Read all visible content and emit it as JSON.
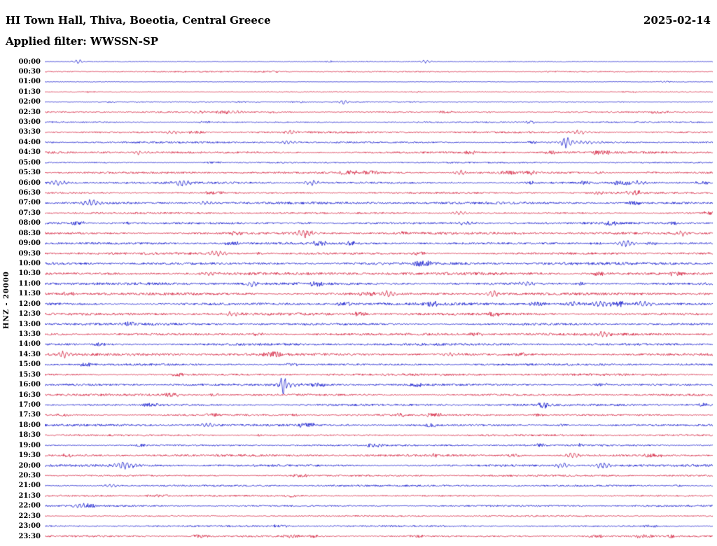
{
  "header": {
    "title": "HI Town Hall, Thiva, Boeotia, Central Greece",
    "date": "2025-02-14",
    "filter_label": "Applied filter: WWSSN-SP"
  },
  "axis": {
    "ylabel": "HNZ - 20000"
  },
  "chart_data": {
    "type": "line",
    "subtype": "helicorder-seismogram",
    "title": "HI Town Hall, Thiva, Boeotia, Central Greece",
    "date": "2025-02-14",
    "filter": "WWSSN-SP",
    "ylabel": "HNZ - 20000",
    "row_duration_minutes": 30,
    "x_axis": {
      "start": "00:00",
      "end": "24:00"
    },
    "legend": "none",
    "grid": false,
    "colors": {
      "even_half_hour": "#0008c8",
      "odd_half_hour": "#d01030"
    },
    "rows": [
      {
        "time": "00:00",
        "color": "#0008c8",
        "noise": 0.5,
        "events": [
          {
            "x": 0.05,
            "amp": 2.2,
            "w": 3
          },
          {
            "x": 0.57,
            "amp": 1.8,
            "w": 3
          }
        ]
      },
      {
        "time": "00:30",
        "color": "#d01030",
        "noise": 0.7,
        "events": []
      },
      {
        "time": "01:00",
        "color": "#0008c8",
        "noise": 0.35,
        "events": []
      },
      {
        "time": "01:30",
        "color": "#d01030",
        "noise": 0.5,
        "events": []
      },
      {
        "time": "02:00",
        "color": "#0008c8",
        "noise": 0.5,
        "events": [
          {
            "x": 0.447,
            "amp": 3,
            "w": 2
          }
        ]
      },
      {
        "time": "02:30",
        "color": "#d01030",
        "noise": 0.8,
        "events": [
          {
            "x": 0.23,
            "amp": 1.8,
            "w": 4
          },
          {
            "x": 0.285,
            "amp": 1.8,
            "w": 4
          }
        ]
      },
      {
        "time": "03:00",
        "color": "#0008c8",
        "noise": 0.8,
        "events": []
      },
      {
        "time": "03:30",
        "color": "#d01030",
        "noise": 1.0,
        "events": [
          {
            "x": 0.19,
            "amp": 1.8,
            "w": 4
          },
          {
            "x": 0.37,
            "amp": 1.8,
            "w": 4
          },
          {
            "x": 0.8,
            "amp": 2.2,
            "w": 5
          }
        ]
      },
      {
        "time": "04:00",
        "color": "#0008c8",
        "noise": 1.0,
        "events": [
          {
            "x": 0.365,
            "amp": 2.4,
            "w": 4
          },
          {
            "x": 0.78,
            "amp": 7,
            "w": 2.5
          },
          {
            "x": 0.8,
            "amp": 2,
            "w": 10
          }
        ]
      },
      {
        "time": "04:30",
        "color": "#d01030",
        "noise": 1.2,
        "events": [
          {
            "x": 0.14,
            "amp": 2,
            "w": 4
          }
        ]
      },
      {
        "time": "05:00",
        "color": "#0008c8",
        "noise": 0.8,
        "events": []
      },
      {
        "time": "05:30",
        "color": "#d01030",
        "noise": 1.1,
        "events": [
          {
            "x": 0.62,
            "amp": 2.8,
            "w": 3.5
          },
          {
            "x": 0.735,
            "amp": 2,
            "w": 3.5
          }
        ]
      },
      {
        "time": "06:00",
        "color": "#0008c8",
        "noise": 1.2,
        "events": [
          {
            "x": 0.02,
            "amp": 3,
            "w": 4
          },
          {
            "x": 0.205,
            "amp": 4,
            "w": 4.5
          },
          {
            "x": 0.4,
            "amp": 3,
            "w": 4
          },
          {
            "x": 0.89,
            "amp": 2,
            "w": 4
          }
        ]
      },
      {
        "time": "06:30",
        "color": "#d01030",
        "noise": 1.0,
        "events": [
          {
            "x": 0.88,
            "amp": 2.2,
            "w": 4
          }
        ]
      },
      {
        "time": "07:00",
        "color": "#0008c8",
        "noise": 1.3,
        "events": [
          {
            "x": 0.07,
            "amp": 4,
            "w": 5
          },
          {
            "x": 0.24,
            "amp": 2,
            "w": 4
          }
        ]
      },
      {
        "time": "07:30",
        "color": "#d01030",
        "noise": 1.0,
        "events": [
          {
            "x": 0.62,
            "amp": 2,
            "w": 4
          }
        ]
      },
      {
        "time": "08:00",
        "color": "#0008c8",
        "noise": 1.2,
        "events": [
          {
            "x": 0.63,
            "amp": 2,
            "w": 4
          }
        ]
      },
      {
        "time": "08:30",
        "color": "#d01030",
        "noise": 1.3,
        "events": [
          {
            "x": 0.39,
            "amp": 4,
            "w": 4.5
          },
          {
            "x": 0.955,
            "amp": 2.4,
            "w": 4
          }
        ]
      },
      {
        "time": "09:00",
        "color": "#0008c8",
        "noise": 1.2,
        "events": [
          {
            "x": 0.87,
            "amp": 3.6,
            "w": 5
          }
        ]
      },
      {
        "time": "09:30",
        "color": "#d01030",
        "noise": 1.3,
        "events": [
          {
            "x": 0.26,
            "amp": 3.4,
            "w": 4
          }
        ]
      },
      {
        "time": "10:00",
        "color": "#0008c8",
        "noise": 1.5,
        "events": []
      },
      {
        "time": "10:30",
        "color": "#d01030",
        "noise": 1.5,
        "events": [
          {
            "x": 0.245,
            "amp": 2.4,
            "w": 4
          }
        ]
      },
      {
        "time": "11:00",
        "color": "#0008c8",
        "noise": 1.4,
        "events": [
          {
            "x": 0.31,
            "amp": 3.4,
            "w": 2.5
          },
          {
            "x": 0.72,
            "amp": 2,
            "w": 4
          }
        ]
      },
      {
        "time": "11:30",
        "color": "#d01030",
        "noise": 1.5,
        "events": [
          {
            "x": 0.515,
            "amp": 3.2,
            "w": 4.5
          },
          {
            "x": 0.67,
            "amp": 3.2,
            "w": 4.5
          }
        ]
      },
      {
        "time": "12:00",
        "color": "#0008c8",
        "noise": 1.5,
        "events": [
          {
            "x": 0.79,
            "amp": 2.8,
            "w": 4
          },
          {
            "x": 0.835,
            "amp": 3.6,
            "w": 4.5
          },
          {
            "x": 0.895,
            "amp": 3.2,
            "w": 4
          }
        ]
      },
      {
        "time": "12:30",
        "color": "#d01030",
        "noise": 1.4,
        "events": [
          {
            "x": 0.28,
            "amp": 2.4,
            "w": 4
          }
        ]
      },
      {
        "time": "13:00",
        "color": "#0008c8",
        "noise": 1.3,
        "events": []
      },
      {
        "time": "13:30",
        "color": "#d01030",
        "noise": 1.4,
        "events": [
          {
            "x": 0.835,
            "amp": 3,
            "w": 4
          }
        ]
      },
      {
        "time": "14:00",
        "color": "#0008c8",
        "noise": 1.3,
        "events": []
      },
      {
        "time": "14:30",
        "color": "#d01030",
        "noise": 1.4,
        "events": [
          {
            "x": 0.03,
            "amp": 3.6,
            "w": 4
          },
          {
            "x": 0.61,
            "amp": 2.4,
            "w": 4
          }
        ]
      },
      {
        "time": "15:00",
        "color": "#0008c8",
        "noise": 1.2,
        "events": []
      },
      {
        "time": "15:30",
        "color": "#d01030",
        "noise": 1.2,
        "events": []
      },
      {
        "time": "16:00",
        "color": "#0008c8",
        "noise": 1.2,
        "events": [
          {
            "x": 0.357,
            "amp": 14,
            "w": 1.2
          },
          {
            "x": 0.362,
            "amp": 3,
            "w": 6
          }
        ]
      },
      {
        "time": "16:30",
        "color": "#d01030",
        "noise": 1.2,
        "events": []
      },
      {
        "time": "17:00",
        "color": "#0008c8",
        "noise": 1.2,
        "events": [
          {
            "x": 0.75,
            "amp": 2,
            "w": 4
          }
        ]
      },
      {
        "time": "17:30",
        "color": "#d01030",
        "noise": 1.0,
        "events": []
      },
      {
        "time": "18:00",
        "color": "#0008c8",
        "noise": 1.2,
        "events": [
          {
            "x": 0.245,
            "amp": 2.4,
            "w": 4
          }
        ]
      },
      {
        "time": "18:30",
        "color": "#d01030",
        "noise": 1.0,
        "events": []
      },
      {
        "time": "19:00",
        "color": "#0008c8",
        "noise": 1.0,
        "events": []
      },
      {
        "time": "19:30",
        "color": "#d01030",
        "noise": 1.2,
        "events": [
          {
            "x": 0.79,
            "amp": 3.4,
            "w": 3.5
          }
        ]
      },
      {
        "time": "20:00",
        "color": "#0008c8",
        "noise": 1.3,
        "events": [
          {
            "x": 0.12,
            "amp": 4.5,
            "w": 6
          },
          {
            "x": 0.775,
            "amp": 3,
            "w": 4
          },
          {
            "x": 0.835,
            "amp": 3.4,
            "w": 4.5
          }
        ]
      },
      {
        "time": "20:30",
        "color": "#d01030",
        "noise": 1.0,
        "events": []
      },
      {
        "time": "21:00",
        "color": "#0008c8",
        "noise": 1.0,
        "events": [
          {
            "x": 0.1,
            "amp": 2,
            "w": 4
          }
        ]
      },
      {
        "time": "21:30",
        "color": "#d01030",
        "noise": 0.9,
        "events": []
      },
      {
        "time": "22:00",
        "color": "#0008c8",
        "noise": 1.0,
        "events": [
          {
            "x": 0.055,
            "amp": 2.4,
            "w": 4
          }
        ]
      },
      {
        "time": "22:30",
        "color": "#d01030",
        "noise": 0.8,
        "events": []
      },
      {
        "time": "23:00",
        "color": "#0008c8",
        "noise": 0.9,
        "events": []
      },
      {
        "time": "23:30",
        "color": "#d01030",
        "noise": 1.0,
        "events": []
      }
    ]
  }
}
